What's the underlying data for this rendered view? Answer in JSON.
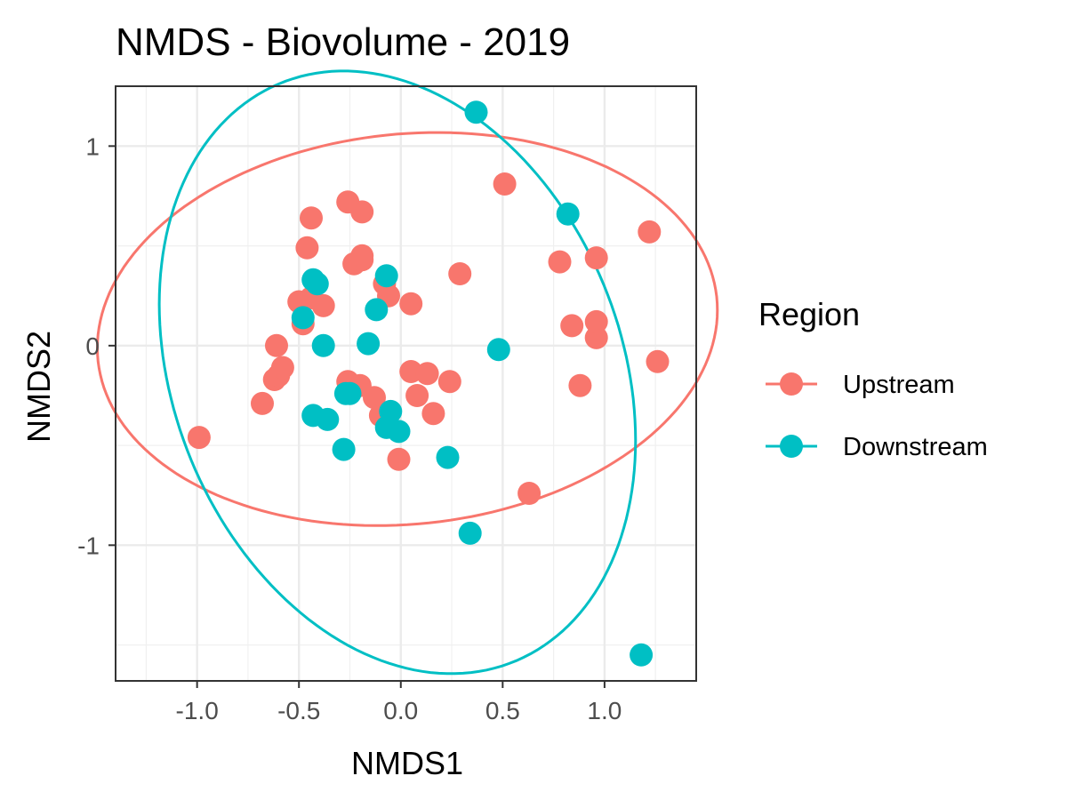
{
  "chart_data": {
    "type": "scatter",
    "title": "NMDS - Biovolume - 2019",
    "xlabel": "NMDS1",
    "ylabel": "NMDS2",
    "xlim": [
      -1.4,
      1.45
    ],
    "ylim": [
      -1.68,
      1.3
    ],
    "x_ticks": [
      -1.0,
      -0.5,
      0.0,
      0.5,
      1.0
    ],
    "x_tick_labels": [
      "-1.0",
      "-0.5",
      "0.0",
      "0.5",
      "1.0"
    ],
    "y_ticks": [
      -1,
      0,
      1
    ],
    "y_tick_labels": [
      "-1",
      "0",
      "1"
    ],
    "grid": true,
    "legend": {
      "title": "Region",
      "position": "right"
    },
    "series": [
      {
        "name": "Upstream",
        "color": "#F8766D",
        "points": [
          [
            -0.99,
            -0.46
          ],
          [
            -0.68,
            -0.29
          ],
          [
            -0.62,
            -0.17
          ],
          [
            -0.6,
            -0.15
          ],
          [
            -0.58,
            -0.11
          ],
          [
            -0.61,
            0.0
          ],
          [
            -0.48,
            0.11
          ],
          [
            -0.5,
            0.22
          ],
          [
            -0.44,
            0.24
          ],
          [
            -0.38,
            0.2
          ],
          [
            -0.46,
            0.49
          ],
          [
            -0.44,
            0.64
          ],
          [
            -0.26,
            0.72
          ],
          [
            -0.19,
            0.67
          ],
          [
            -0.19,
            0.45
          ],
          [
            -0.23,
            0.41
          ],
          [
            -0.19,
            0.43
          ],
          [
            -0.08,
            0.31
          ],
          [
            -0.06,
            0.25
          ],
          [
            0.05,
            0.21
          ],
          [
            -0.26,
            -0.18
          ],
          [
            -0.2,
            -0.2
          ],
          [
            -0.13,
            -0.26
          ],
          [
            -0.1,
            -0.35
          ],
          [
            -0.01,
            -0.57
          ],
          [
            0.05,
            -0.13
          ],
          [
            0.08,
            -0.25
          ],
          [
            0.13,
            -0.14
          ],
          [
            0.16,
            -0.34
          ],
          [
            0.24,
            -0.18
          ],
          [
            0.29,
            0.36
          ],
          [
            0.51,
            0.81
          ],
          [
            0.63,
            -0.74
          ],
          [
            0.78,
            0.42
          ],
          [
            0.84,
            0.1
          ],
          [
            0.88,
            -0.2
          ],
          [
            0.96,
            0.04
          ],
          [
            0.96,
            0.12
          ],
          [
            0.96,
            0.44
          ],
          [
            1.22,
            0.57
          ],
          [
            1.26,
            -0.08
          ]
        ]
      },
      {
        "name": "Downstream",
        "color": "#00BFC4",
        "points": [
          [
            0.37,
            1.17
          ],
          [
            0.82,
            0.66
          ],
          [
            -0.41,
            0.31
          ],
          [
            -0.43,
            0.33
          ],
          [
            -0.07,
            0.35
          ],
          [
            -0.12,
            0.18
          ],
          [
            -0.48,
            0.14
          ],
          [
            -0.38,
            0.0
          ],
          [
            -0.16,
            0.01
          ],
          [
            0.48,
            -0.02
          ],
          [
            -0.25,
            -0.24
          ],
          [
            -0.27,
            -0.24
          ],
          [
            -0.43,
            -0.35
          ],
          [
            -0.36,
            -0.37
          ],
          [
            -0.05,
            -0.33
          ],
          [
            -0.07,
            -0.41
          ],
          [
            -0.01,
            -0.43
          ],
          [
            -0.28,
            -0.52
          ],
          [
            0.23,
            -0.56
          ],
          [
            0.34,
            -0.94
          ],
          [
            1.18,
            -1.55
          ]
        ]
      }
    ]
  }
}
